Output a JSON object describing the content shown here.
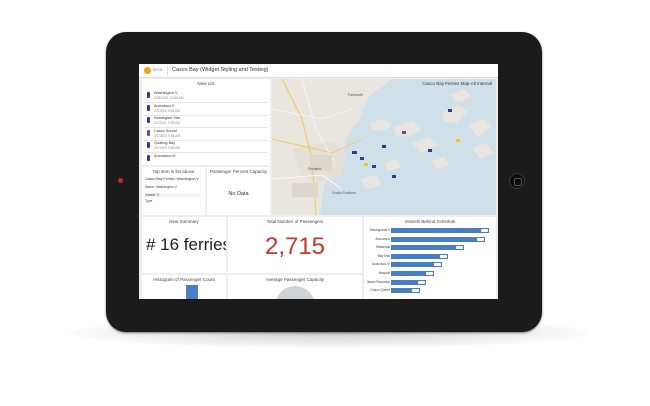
{
  "app": {
    "brand": "Beta",
    "title": "Casco Bay (Widget Styling and Testing)"
  },
  "new_list": {
    "title": "New List",
    "items": [
      {
        "name": "Washington V",
        "time": "6/28/2019, 10:56 AM",
        "color": "#2a3d8f"
      },
      {
        "name": "Aucocisco II",
        "time": "2/7/2019, 9:58 AM",
        "color": "#2a3d8f"
      },
      {
        "name": "Norwegian Star",
        "time": "2/7/2019, 9:58 AM",
        "color": "#2a3d8f"
      },
      {
        "name": "Casco Sound",
        "time": "2/7/2019, 9:58 AM",
        "color": "#7a3e9d"
      },
      {
        "name": "Quahog Bay",
        "time": "2/7/2019, 9:58 AM",
        "color": "#2a3d8f"
      },
      {
        "name": "Aucocisco III",
        "time": "",
        "color": "#2a3d8f"
      }
    ]
  },
  "details": {
    "title": "Top item in list above",
    "header": "Casco Bay Ferries: Washington V",
    "rows": [
      {
        "label": "Name",
        "value": "Washington V"
      },
      {
        "label": "Vessel",
        "value": "V"
      },
      {
        "label": "Type",
        "value": ""
      }
    ]
  },
  "capacity": {
    "title": "Passenger Percent Capacity",
    "message": "No Data"
  },
  "map": {
    "title": "Casco Bay Ferries Map-All Internal",
    "labels": [
      "Falmouth",
      "Portland",
      "South Portland"
    ]
  },
  "summary": {
    "title": "New Summary",
    "value": "# 16 ferries"
  },
  "total": {
    "title": "Total Number of Passengers",
    "value": "2,715",
    "color": "#c0392b"
  },
  "chart_data": {
    "type": "bar",
    "title": "Vessels Behind Schedule",
    "categories": [
      "Machigonne II",
      "Aucocisco",
      "Wabanaki",
      "Bay Mist",
      "Aucocisco III",
      "Maquoit",
      "Island Romance",
      "Casco Queen"
    ],
    "values": [
      100,
      96,
      74,
      58,
      52,
      44,
      36,
      30
    ]
  },
  "histogram": {
    "title": "Histogram of Passenger Count"
  },
  "avg_capacity": {
    "title": "Average Passenger Capacity"
  },
  "colors": {
    "accent": "#4a7ec2",
    "total_red": "#c0392b",
    "tablet": "#1b1b1b"
  }
}
